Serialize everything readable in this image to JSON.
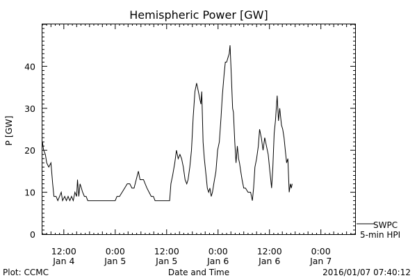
{
  "chart_data": {
    "type": "line",
    "title": "Hemispheric Power [GW]",
    "ylabel": "P [GW]",
    "xlabel": "Date and Time",
    "ylim": [
      0,
      50
    ],
    "x_unit": "hours since 2016/01/04 00:00 (plot-time axis)",
    "xlim": [
      7.0,
      80.0
    ],
    "y_ticks": [
      0,
      10,
      20,
      30,
      40
    ],
    "x_ticks": [
      {
        "hour": 12,
        "time": "12:00",
        "date": "Jan 4"
      },
      {
        "hour": 24,
        "time": "0:00",
        "date": "Jan 5"
      },
      {
        "hour": 36,
        "time": "12:00",
        "date": "Jan 5"
      },
      {
        "hour": 48,
        "time": "0:00",
        "date": "Jan 6"
      },
      {
        "hour": 60,
        "time": "12:00",
        "date": "Jan 6"
      },
      {
        "hour": 72,
        "time": "0:00",
        "date": "Jan 7"
      }
    ],
    "series": [
      {
        "name": "SWPC 5-min HPI",
        "color": "#000000",
        "points": [
          [
            7.0,
            22
          ],
          [
            7.3,
            20
          ],
          [
            7.7,
            19
          ],
          [
            8.0,
            17
          ],
          [
            8.5,
            16
          ],
          [
            9.0,
            17
          ],
          [
            9.4,
            12
          ],
          [
            9.7,
            9
          ],
          [
            10.2,
            9
          ],
          [
            10.6,
            8
          ],
          [
            11.0,
            9
          ],
          [
            11.4,
            10
          ],
          [
            11.7,
            8
          ],
          [
            12.2,
            9
          ],
          [
            12.6,
            8
          ],
          [
            13.0,
            9
          ],
          [
            13.4,
            8
          ],
          [
            13.8,
            9
          ],
          [
            14.2,
            8
          ],
          [
            14.6,
            10
          ],
          [
            15.0,
            9
          ],
          [
            15.2,
            13
          ],
          [
            15.5,
            9
          ],
          [
            15.8,
            12
          ],
          [
            16.1,
            11
          ],
          [
            16.4,
            10
          ],
          [
            16.8,
            9
          ],
          [
            17.2,
            9
          ],
          [
            17.6,
            8
          ],
          [
            18.0,
            8
          ],
          [
            19.0,
            8
          ],
          [
            20.0,
            8
          ],
          [
            21.0,
            8
          ],
          [
            22.0,
            8
          ],
          [
            23.0,
            8
          ],
          [
            24.0,
            8
          ],
          [
            24.4,
            9
          ],
          [
            25.0,
            9
          ],
          [
            25.6,
            10
          ],
          [
            26.2,
            11
          ],
          [
            26.8,
            12
          ],
          [
            27.4,
            12
          ],
          [
            27.9,
            11
          ],
          [
            28.4,
            11
          ],
          [
            28.9,
            13
          ],
          [
            29.4,
            15
          ],
          [
            29.8,
            13
          ],
          [
            30.6,
            13
          ],
          [
            31.0,
            12
          ],
          [
            31.4,
            11
          ],
          [
            31.9,
            10
          ],
          [
            32.4,
            9
          ],
          [
            32.9,
            9
          ],
          [
            33.3,
            8
          ],
          [
            34.0,
            8
          ],
          [
            35.0,
            8
          ],
          [
            36.0,
            8
          ],
          [
            36.7,
            8
          ],
          [
            37.0,
            12
          ],
          [
            37.4,
            14
          ],
          [
            37.9,
            17
          ],
          [
            38.3,
            20
          ],
          [
            38.7,
            18
          ],
          [
            39.1,
            19
          ],
          [
            39.5,
            18
          ],
          [
            39.9,
            16
          ],
          [
            40.3,
            13
          ],
          [
            40.7,
            12
          ],
          [
            41.0,
            13
          ],
          [
            41.4,
            16
          ],
          [
            41.8,
            20
          ],
          [
            42.2,
            28
          ],
          [
            42.6,
            34
          ],
          [
            43.0,
            36
          ],
          [
            43.4,
            34
          ],
          [
            43.8,
            32
          ],
          [
            44.0,
            31
          ],
          [
            44.2,
            34
          ],
          [
            44.5,
            22
          ],
          [
            44.8,
            18
          ],
          [
            45.2,
            14
          ],
          [
            45.5,
            11
          ],
          [
            45.8,
            10
          ],
          [
            46.1,
            11
          ],
          [
            46.4,
            9
          ],
          [
            46.7,
            10
          ],
          [
            47.0,
            12
          ],
          [
            47.5,
            15
          ],
          [
            47.9,
            20
          ],
          [
            48.3,
            22
          ],
          [
            48.7,
            28
          ],
          [
            49.0,
            33
          ],
          [
            49.4,
            38
          ],
          [
            49.7,
            41
          ],
          [
            50.0,
            41
          ],
          [
            50.3,
            42
          ],
          [
            50.6,
            43
          ],
          [
            50.8,
            45
          ],
          [
            51.1,
            38
          ],
          [
            51.4,
            30
          ],
          [
            51.6,
            29
          ],
          [
            51.9,
            22
          ],
          [
            52.2,
            17
          ],
          [
            52.5,
            21
          ],
          [
            52.8,
            18
          ],
          [
            53.0,
            17
          ],
          [
            53.3,
            15
          ],
          [
            53.6,
            13
          ],
          [
            54.0,
            11
          ],
          [
            54.4,
            11
          ],
          [
            55.0,
            10
          ],
          [
            55.6,
            10
          ],
          [
            56.0,
            8
          ],
          [
            56.3,
            11
          ],
          [
            56.6,
            16
          ],
          [
            57.0,
            18
          ],
          [
            57.4,
            21
          ],
          [
            57.7,
            25
          ],
          [
            58.1,
            23
          ],
          [
            58.5,
            20
          ],
          [
            58.9,
            23
          ],
          [
            59.3,
            21
          ],
          [
            59.7,
            19
          ],
          [
            60.1,
            15
          ],
          [
            60.5,
            11
          ],
          [
            60.8,
            16
          ],
          [
            61.1,
            24
          ],
          [
            61.4,
            27
          ],
          [
            61.8,
            33
          ],
          [
            62.1,
            27
          ],
          [
            62.4,
            30
          ],
          [
            62.8,
            26
          ],
          [
            63.1,
            25
          ],
          [
            63.4,
            23
          ],
          [
            63.7,
            20
          ],
          [
            64.0,
            17
          ],
          [
            64.3,
            18
          ],
          [
            64.6,
            10
          ],
          [
            64.9,
            12
          ],
          [
            65.1,
            11
          ],
          [
            65.3,
            12
          ]
        ]
      }
    ],
    "legend": [
      "SWPC",
      "5-min HPI"
    ],
    "grid": false
  },
  "footer": {
    "left": "Plot: CCMC",
    "center": "Date and Time",
    "right": "2016/01/07 07:40:12"
  }
}
